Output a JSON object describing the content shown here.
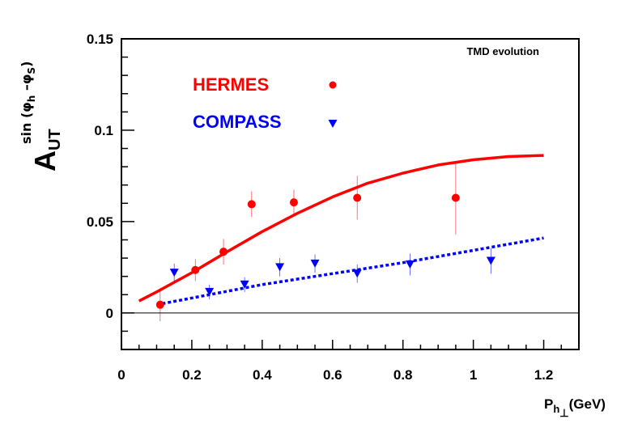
{
  "chart_data": {
    "type": "scatter",
    "annotation": "TMD evolution",
    "ylabel": {
      "main": "A",
      "sub": "UT",
      "sup_prefix": "sin (",
      "sup_phi_h": "φ",
      "sup_h": "h",
      "sup_minus": " –",
      "sup_phi_s": "φ",
      "sup_s": "S",
      "sup_suffix": ")"
    },
    "xlabel": {
      "main": "P",
      "sub_h": "h",
      "sub_perp": "⊥",
      "unit": "(GeV)"
    },
    "xlim": [
      0,
      1.3
    ],
    "ylim": [
      -0.02,
      0.15
    ],
    "x_ticks": [
      0,
      0.2,
      0.4,
      0.6,
      0.8,
      1,
      1.2
    ],
    "x_tick_labels": [
      "0",
      "0.2",
      "0.4",
      "0.6",
      "0.8",
      "1",
      "1.2"
    ],
    "y_ticks": [
      0,
      0.05,
      0.1,
      0.15
    ],
    "y_tick_labels": [
      "0",
      "0.05",
      "0.1",
      "0.15"
    ],
    "legend_placement": "top-left",
    "series": [
      {
        "name": "HERMES",
        "color": "#ff0000",
        "marker": "circle",
        "points": [
          {
            "x": 0.11,
            "y": 0.0045,
            "err": 0.009
          },
          {
            "x": 0.21,
            "y": 0.0235,
            "err": 0.006
          },
          {
            "x": 0.29,
            "y": 0.0335,
            "err": 0.007
          },
          {
            "x": 0.37,
            "y": 0.0595,
            "err": 0.007
          },
          {
            "x": 0.49,
            "y": 0.0605,
            "err": 0.007
          },
          {
            "x": 0.67,
            "y": 0.063,
            "err": 0.012
          },
          {
            "x": 0.95,
            "y": 0.063,
            "err": 0.02
          }
        ]
      },
      {
        "name": "COMPASS",
        "color": "#0000ff",
        "marker": "triangle-down",
        "points": [
          {
            "x": 0.15,
            "y": 0.022,
            "err": 0.005
          },
          {
            "x": 0.25,
            "y": 0.0115,
            "err": 0.004
          },
          {
            "x": 0.35,
            "y": 0.0155,
            "err": 0.004
          },
          {
            "x": 0.45,
            "y": 0.025,
            "err": 0.005
          },
          {
            "x": 0.55,
            "y": 0.027,
            "err": 0.005
          },
          {
            "x": 0.67,
            "y": 0.0215,
            "err": 0.005
          },
          {
            "x": 0.82,
            "y": 0.0265,
            "err": 0.006
          },
          {
            "x": 1.05,
            "y": 0.0285,
            "err": 0.007
          }
        ]
      }
    ],
    "curves": [
      {
        "color": "#ff0000",
        "style": "solid",
        "x": [
          0.05,
          0.1,
          0.2,
          0.3,
          0.4,
          0.5,
          0.6,
          0.7,
          0.8,
          0.9,
          1.0,
          1.1,
          1.2
        ],
        "y": [
          0.0065,
          0.0115,
          0.022,
          0.0335,
          0.0445,
          0.0545,
          0.0635,
          0.071,
          0.0765,
          0.081,
          0.0838,
          0.0856,
          0.0862
        ]
      },
      {
        "color": "#0000ff",
        "style": "dotted",
        "x": [
          0.1,
          0.4,
          0.8,
          1.2
        ],
        "y": [
          0.0045,
          0.0155,
          0.0275,
          0.041
        ]
      }
    ]
  }
}
